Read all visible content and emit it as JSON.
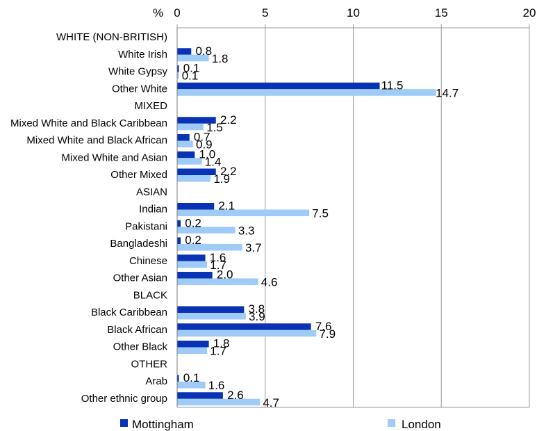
{
  "chart_data": {
    "type": "bar",
    "orientation": "horizontal",
    "unit_label": "%",
    "xlim": [
      0,
      20
    ],
    "xticks": [
      0,
      5,
      10,
      15,
      20
    ],
    "grid": true,
    "legend_position": "bottom",
    "categories": [
      "WHITE (NON-BRITISH)",
      "White Irish",
      "White Gypsy",
      "Other White",
      "MIXED",
      "Mixed White and Black Caribbean",
      "Mixed White and Black African",
      "Mixed White and Asian",
      "Other Mixed",
      "ASIAN",
      "Indian",
      "Pakistani",
      "Bangladeshi",
      "Chinese",
      "Other Asian",
      "BLACK",
      "Black Caribbean",
      "Black African",
      "Other Black",
      "OTHER",
      "Arab",
      "Other ethnic group"
    ],
    "series": [
      {
        "name": "Mottingham",
        "color": "#0a32b4",
        "values": [
          null,
          0.8,
          0.1,
          11.5,
          null,
          2.2,
          0.7,
          1.0,
          2.2,
          null,
          2.1,
          0.2,
          0.2,
          1.6,
          2.0,
          null,
          3.8,
          7.6,
          1.8,
          null,
          0.1,
          2.6
        ],
        "labels": [
          "",
          "0.8",
          "0.1",
          "11.5",
          "",
          "2.2",
          "0.7",
          "1.0",
          "2.2",
          "",
          "2.1",
          "0.2",
          "0.2",
          "1.6",
          "2.0",
          "",
          "3.8",
          "7.6",
          "1.8",
          "",
          "0.1",
          "2.6"
        ]
      },
      {
        "name": "London",
        "color": "#9ecbf7",
        "values": [
          null,
          1.8,
          0.1,
          14.7,
          null,
          1.5,
          0.9,
          1.4,
          1.9,
          null,
          7.5,
          3.3,
          3.7,
          1.7,
          4.6,
          null,
          3.9,
          7.9,
          1.7,
          null,
          1.6,
          4.7
        ],
        "labels": [
          "",
          "1.8",
          "0.1",
          "14.7",
          "",
          "1.5",
          "0.9",
          "1.4",
          "1.9",
          "",
          "7.5",
          "3.3",
          "3.7",
          "1.7",
          "4.6",
          "",
          "3.9",
          "7.9",
          "1.7",
          "",
          "1.6",
          "4.7"
        ]
      }
    ]
  }
}
